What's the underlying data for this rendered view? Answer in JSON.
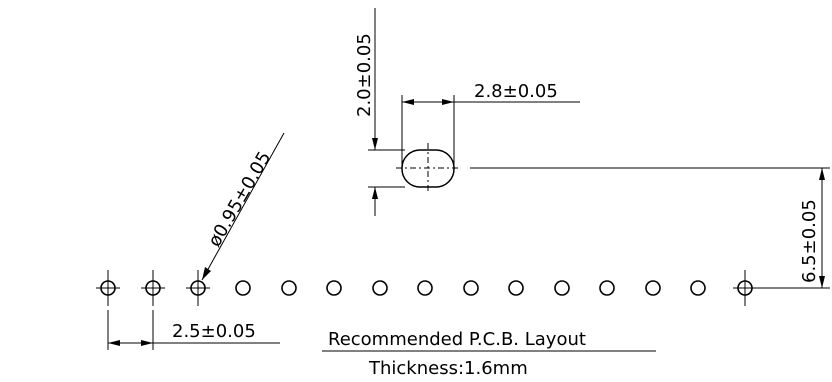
{
  "drawing": {
    "dim_slot_height": "2.0±0.05",
    "dim_slot_width": "2.8±0.05",
    "dim_hole_diameter": "ø0.95±0.05",
    "dim_offset": "6.5±0.05",
    "dim_pitch": "2.5±0.05",
    "layout_title": "Recommended P.C.B. Layout",
    "thickness": "Thickness:1.6mm"
  }
}
